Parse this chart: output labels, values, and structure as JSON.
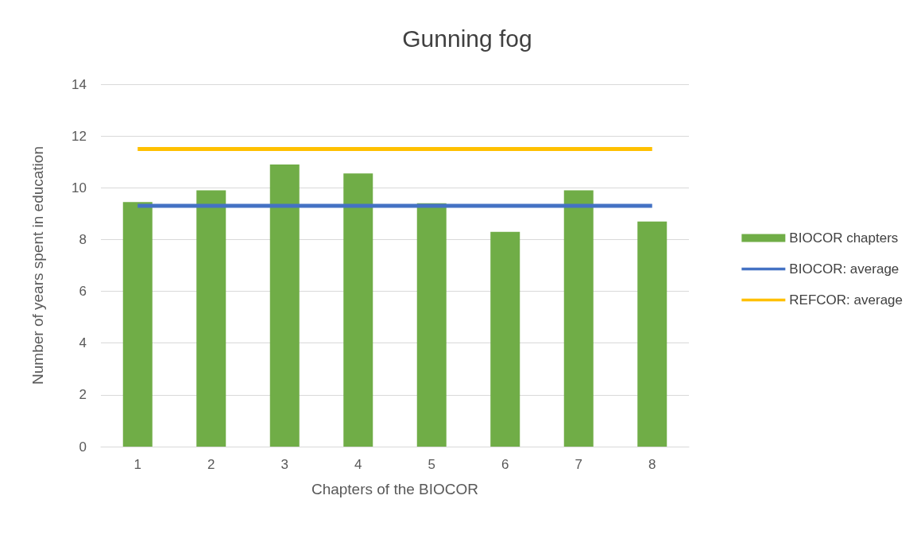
{
  "chart_data": {
    "type": "bar",
    "title": "Gunning fog",
    "xlabel": "Chapters of the BIOCOR",
    "ylabel": "Number of years spent in education",
    "categories": [
      "1",
      "2",
      "3",
      "4",
      "5",
      "6",
      "7",
      "8"
    ],
    "series": [
      {
        "name": "BIOCOR chapters",
        "color": "#70ad47",
        "values": [
          9.45,
          9.9,
          10.9,
          10.55,
          9.4,
          8.3,
          9.9,
          8.7
        ]
      },
      {
        "name": "BIOCOR: average",
        "type": "line",
        "color": "#4472c4",
        "values": [
          9.3,
          9.3,
          9.3,
          9.3,
          9.3,
          9.3,
          9.3,
          9.3
        ]
      },
      {
        "name": "REFCOR: average",
        "type": "line",
        "color": "#ffc000",
        "values": [
          11.5,
          11.5,
          11.5,
          11.5,
          11.5,
          11.5,
          11.5,
          11.5
        ]
      }
    ],
    "ylim": [
      0,
      14
    ],
    "yticks": [
      0,
      2,
      4,
      6,
      8,
      10,
      12,
      14
    ],
    "grid": "y",
    "legend": "right",
    "marker": "none"
  }
}
